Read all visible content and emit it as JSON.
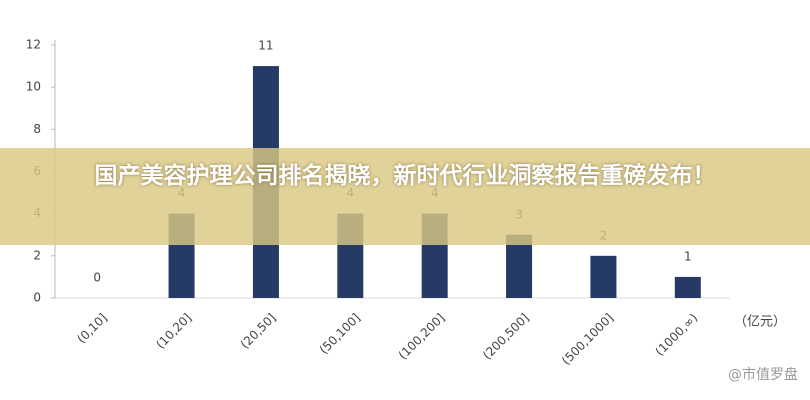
{
  "chart_data": {
    "type": "bar",
    "title": "国产美容护理公司排名揭晓，新时代行业洞察报告重磅发布！",
    "unit_label": "（亿元）",
    "watermark": "@市值罗盘",
    "categories": [
      "(0,10]",
      "(10,20]",
      "(20,50]",
      "(50,100]",
      "(100,200]",
      "(200,500]",
      "(500,1000]",
      "(1000,∞)"
    ],
    "values": [
      0,
      4,
      11,
      4,
      4,
      3,
      2,
      1
    ],
    "color": "#253b66",
    "ylim": [
      0,
      12
    ],
    "yticks": [
      0,
      2,
      4,
      6,
      8,
      10,
      12
    ],
    "grid": false
  }
}
